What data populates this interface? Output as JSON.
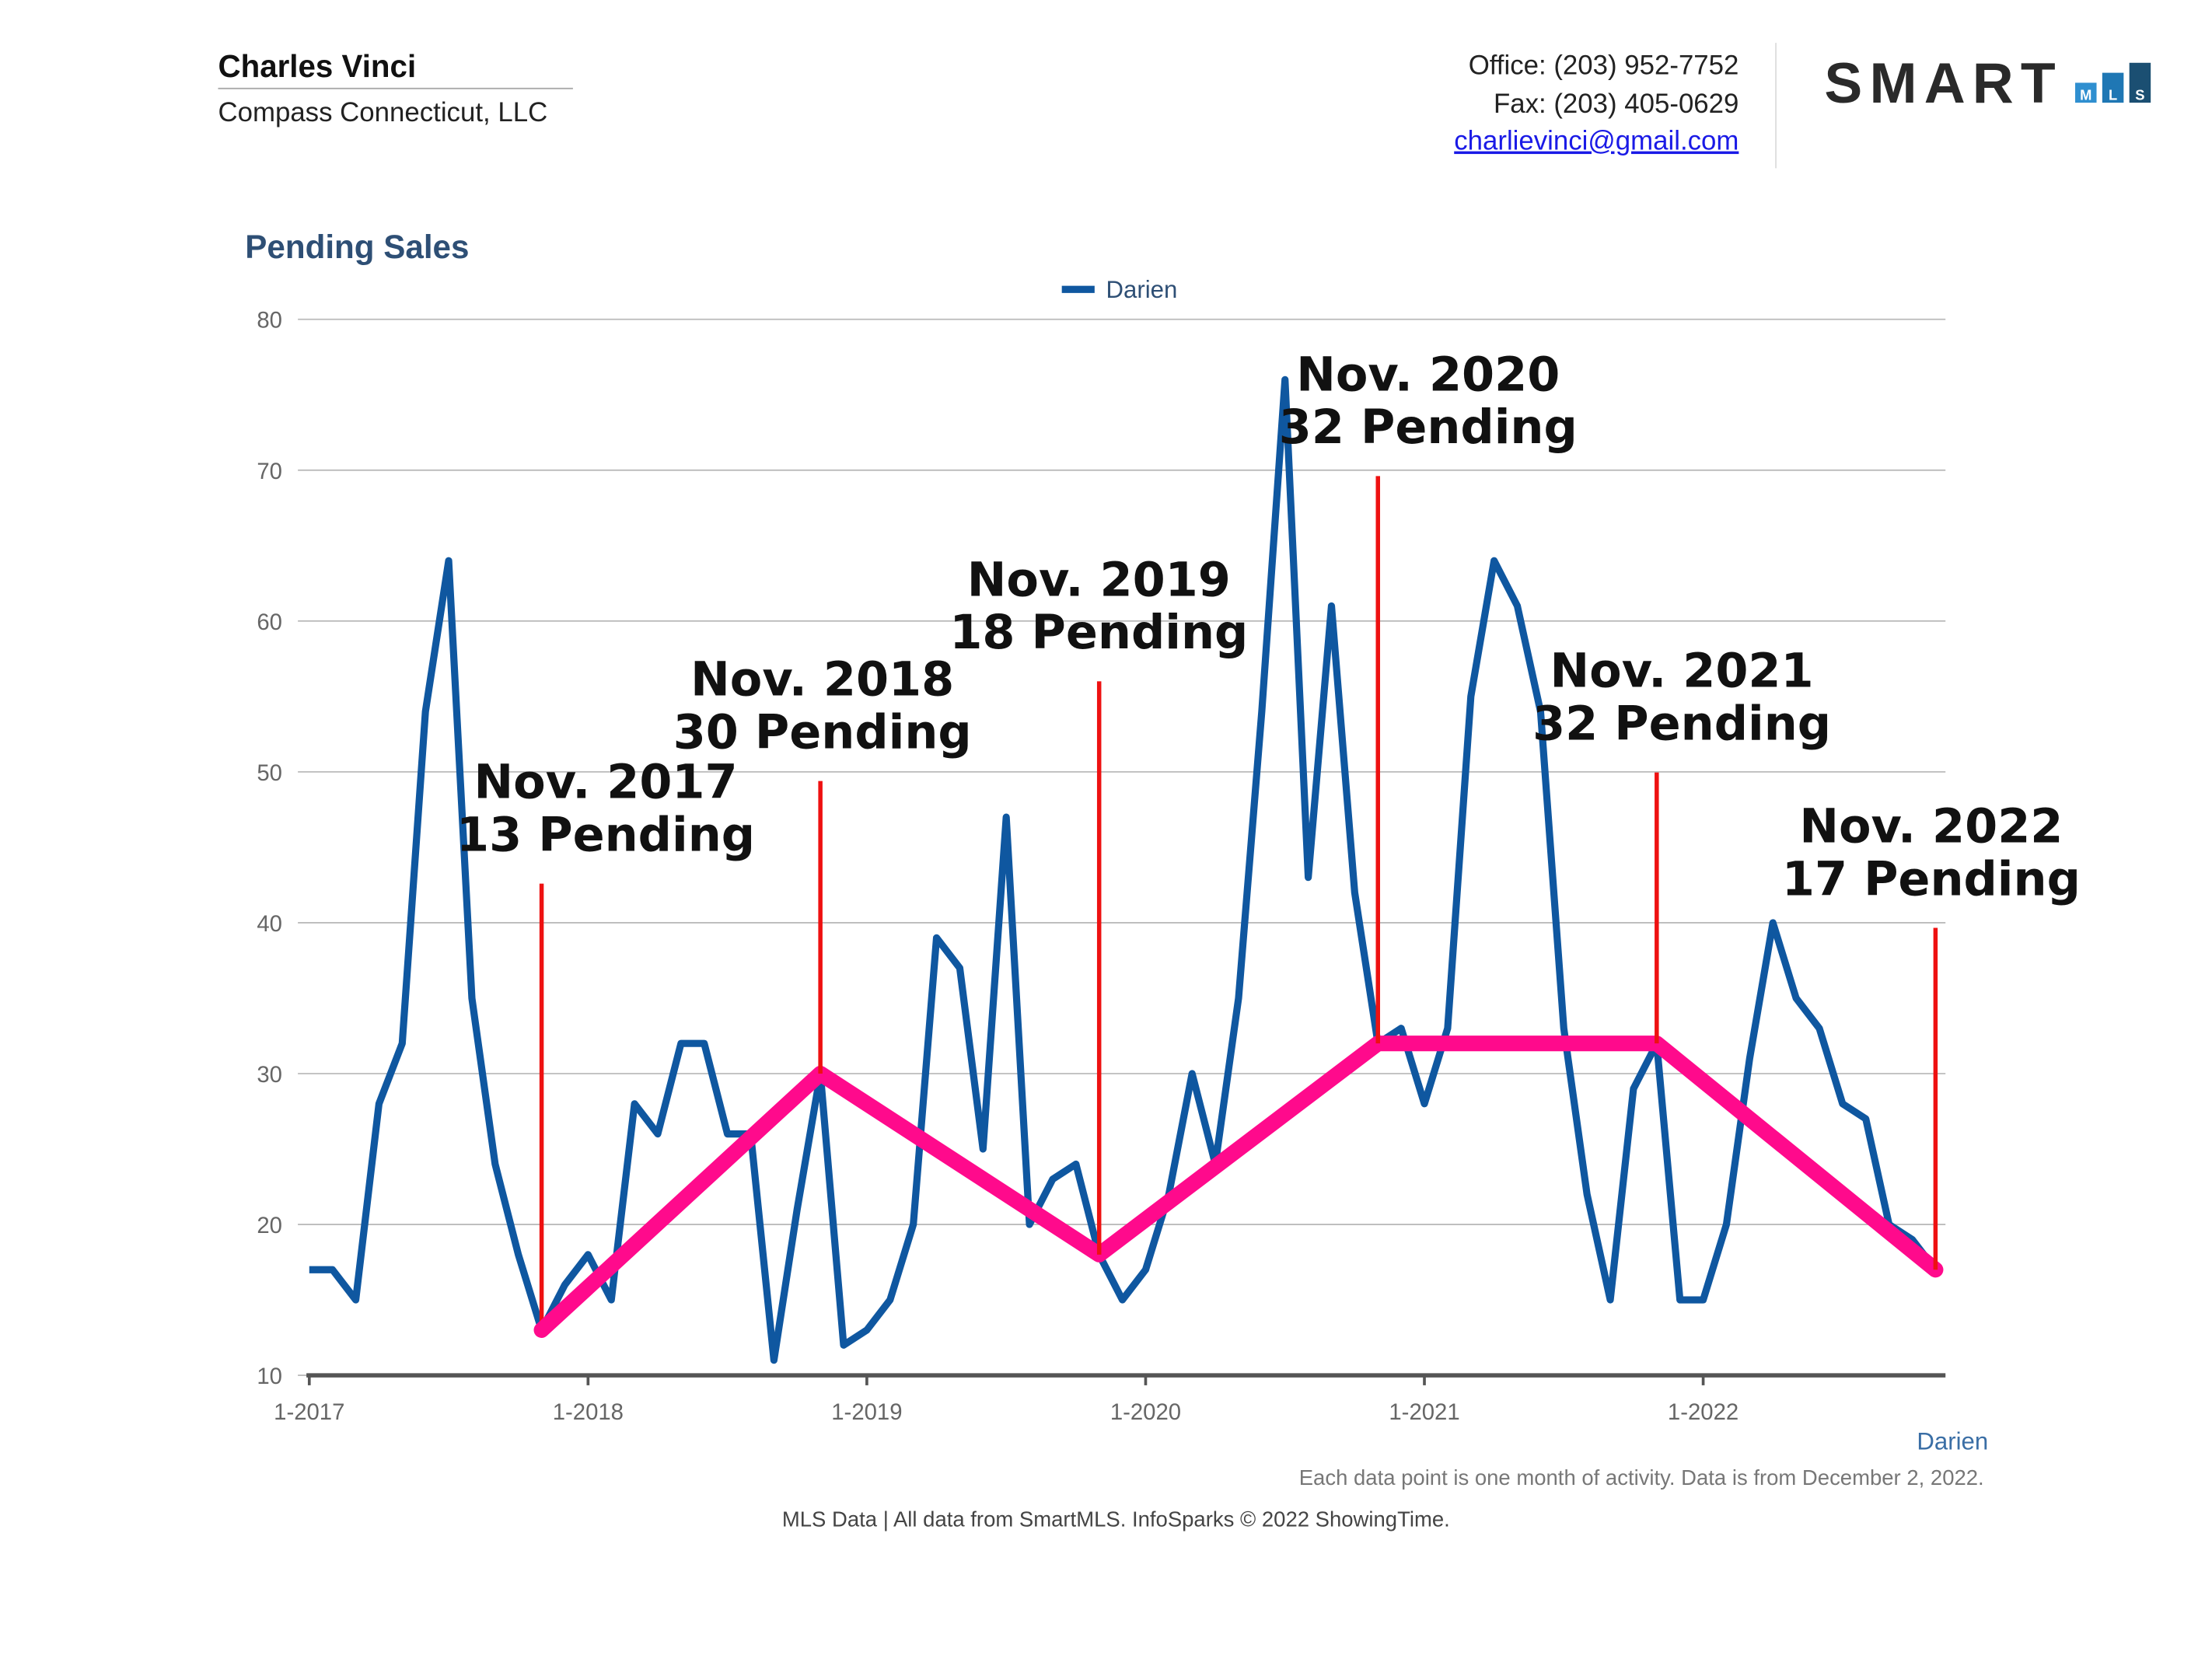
{
  "header": {
    "name": "Charles Vinci",
    "company": "Compass Connecticut, LLC",
    "office": "Office: (203) 952-7752",
    "fax": "Fax: (203) 405-0629",
    "email": "charlievinci@gmail.com",
    "logo_text": "SMART",
    "logo_boxes": [
      "M",
      "L",
      "S"
    ]
  },
  "chart_data": {
    "type": "line",
    "title": "Pending Sales",
    "x_axis_label": "Darien",
    "note": "Each data point is one month of activity. Data is from December 2, 2022.",
    "footer": "MLS Data | All data from SmartMLS. InfoSparks © 2022 ShowingTime.",
    "categories": [
      "1-2017",
      null,
      null,
      null,
      null,
      null,
      null,
      null,
      null,
      null,
      null,
      null,
      "1-2018",
      null,
      null,
      null,
      null,
      null,
      null,
      null,
      null,
      null,
      null,
      null,
      "1-2019",
      null,
      null,
      null,
      null,
      null,
      null,
      null,
      null,
      null,
      null,
      null,
      "1-2020",
      null,
      null,
      null,
      null,
      null,
      null,
      null,
      null,
      null,
      null,
      null,
      "1-2021",
      null,
      null,
      null,
      null,
      null,
      null,
      null,
      null,
      null,
      null,
      null,
      "1-2022",
      null,
      null,
      null,
      null,
      null,
      null,
      null,
      null,
      null,
      null
    ],
    "series": [
      {
        "name": "Darien",
        "color": "#0f57a0",
        "values": [
          17,
          17,
          15,
          28,
          32,
          54,
          64,
          35,
          24,
          18,
          13,
          16,
          18,
          15,
          28,
          26,
          32,
          32,
          26,
          26,
          11,
          21,
          30,
          12,
          13,
          15,
          20,
          39,
          37,
          25,
          47,
          20,
          23,
          24,
          18,
          15,
          17,
          22,
          30,
          24,
          35,
          54,
          76,
          43,
          61,
          42,
          32,
          33,
          28,
          33,
          55,
          64,
          61,
          54,
          33,
          22,
          15,
          29,
          32,
          15,
          15,
          20,
          31,
          40,
          35,
          33,
          28,
          27,
          20,
          19,
          17
        ]
      }
    ],
    "ylim": [
      10,
      80
    ],
    "yticks": [
      10,
      20,
      30,
      40,
      50,
      60,
      70,
      80
    ],
    "grid": true,
    "trend_color": "#ff0a8c",
    "marker_color": "#ee1111",
    "annotations": [
      {
        "at": 10,
        "title": "Nov. 2017",
        "text": "13 Pending"
      },
      {
        "at": 22,
        "title": "Nov. 2018",
        "text": "30 Pending"
      },
      {
        "at": 34,
        "title": "Nov. 2019",
        "text": "18 Pending"
      },
      {
        "at": 46,
        "title": "Nov. 2020",
        "text": "32 Pending"
      },
      {
        "at": 58,
        "title": "Nov. 2021",
        "text": "32 Pending"
      },
      {
        "at": 70,
        "title": "Nov. 2022",
        "text": "17 Pending"
      }
    ]
  }
}
